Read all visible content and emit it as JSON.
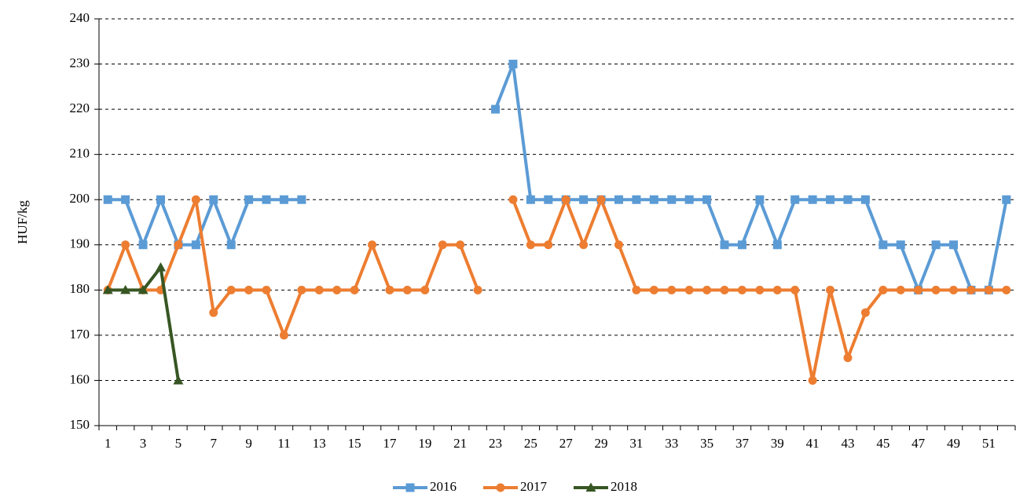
{
  "chart_data": {
    "type": "line",
    "y_label": "HUF/kg",
    "categories": [
      1,
      null,
      3,
      null,
      5,
      null,
      7,
      null,
      9,
      null,
      11,
      null,
      13,
      null,
      15,
      null,
      17,
      null,
      19,
      null,
      21,
      null,
      23,
      null,
      25,
      null,
      27,
      null,
      29,
      null,
      31,
      null,
      33,
      null,
      35,
      null,
      37,
      null,
      39,
      null,
      41,
      null,
      43,
      null,
      45,
      null,
      47,
      null,
      49,
      null,
      51,
      null
    ],
    "series": [
      {
        "name": "2016",
        "color": "#5b9bd5",
        "marker": "square",
        "values": [
          200,
          200,
          190,
          200,
          190,
          190,
          200,
          190,
          200,
          200,
          200,
          200,
          null,
          null,
          null,
          null,
          null,
          null,
          null,
          null,
          null,
          null,
          220,
          230,
          200,
          200,
          200,
          200,
          200,
          200,
          200,
          200,
          200,
          200,
          200,
          190,
          190,
          200,
          190,
          200,
          200,
          200,
          200,
          200,
          190,
          190,
          180,
          190,
          190,
          180,
          180,
          200
        ]
      },
      {
        "name": "2017",
        "color": "#ed7d31",
        "marker": "circle",
        "values": [
          180,
          190,
          180,
          180,
          190,
          200,
          175,
          180,
          180,
          180,
          170,
          180,
          180,
          180,
          180,
          190,
          180,
          180,
          180,
          190,
          190,
          180,
          null,
          200,
          190,
          190,
          200,
          190,
          200,
          190,
          180,
          180,
          180,
          180,
          180,
          180,
          180,
          180,
          180,
          180,
          160,
          180,
          165,
          175,
          180,
          180,
          180,
          180,
          180,
          180,
          180,
          180
        ]
      },
      {
        "name": "2018",
        "color": "#375623",
        "marker": "triangle",
        "values": [
          180,
          180,
          180,
          185,
          160,
          null,
          null,
          null,
          null,
          null,
          null,
          null,
          null,
          null,
          null,
          null,
          null,
          null,
          null,
          null,
          null,
          null,
          null,
          null,
          null,
          null,
          null,
          null,
          null,
          null,
          null,
          null,
          null,
          null,
          null,
          null,
          null,
          null,
          null,
          null,
          null,
          null,
          null,
          null,
          null,
          null,
          null,
          null,
          null,
          null,
          null,
          null
        ]
      }
    ],
    "ylim": [
      150,
      240
    ],
    "yticks": [
      150,
      160,
      170,
      180,
      190,
      200,
      210,
      220,
      230,
      240
    ],
    "grid": true
  }
}
